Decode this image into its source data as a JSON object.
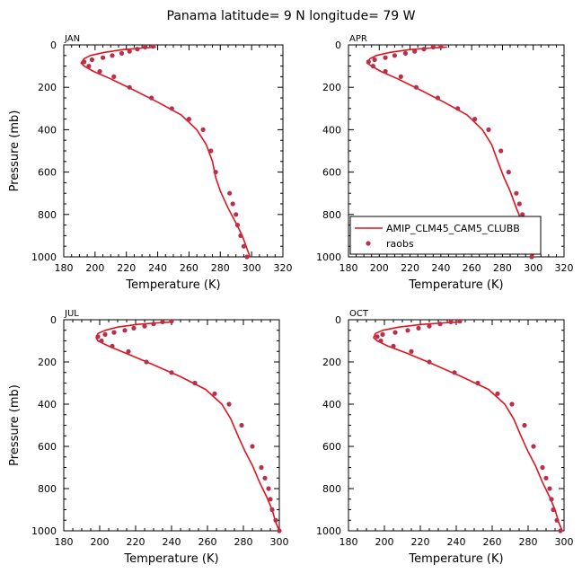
{
  "figure": {
    "title": "Panama  latitude= 9 N longitude= 79 W"
  },
  "colors": {
    "model_line": "#e0141e",
    "raobs_marker": "#b8304a",
    "axis": "#000000"
  },
  "legend": {
    "model_label": "AMIP_CLM45_CAM5_CLUBB",
    "obs_label": "raobs",
    "placement": "bottom-right of APR panel"
  },
  "chart_data": [
    {
      "type": "line",
      "panel_label": "JAN",
      "xlabel": "Temperature (K)",
      "ylabel": "Pressure (mb)",
      "xlim": [
        180,
        320
      ],
      "ylim": [
        1000,
        0
      ],
      "xticks": [
        "180",
        "200",
        "220",
        "240",
        "260",
        "280",
        "300",
        "320"
      ],
      "yticks": [
        "0",
        "200",
        "400",
        "600",
        "800",
        "1000"
      ],
      "show_legend": false,
      "series": [
        {
          "name": "AMIP_CLM45_CAM5_CLUBB",
          "style": "line",
          "x": [
            239,
            230,
            218,
            206,
            197,
            193,
            191,
            193,
            199,
            210,
            224,
            240,
            255,
            265,
            271,
            275,
            277,
            280,
            285,
            290,
            294,
            297,
            299
          ],
          "y": [
            10,
            15,
            22,
            35,
            50,
            65,
            85,
            100,
            125,
            160,
            210,
            270,
            330,
            400,
            470,
            550,
            625,
            690,
            770,
            840,
            900,
            960,
            1000
          ]
        },
        {
          "name": "raobs",
          "style": "points",
          "x": [
            237,
            232,
            227,
            222,
            217,
            211,
            205,
            198,
            193,
            196,
            203,
            212,
            222,
            236,
            249,
            260,
            269,
            274,
            277,
            286,
            288,
            290,
            291,
            293,
            295,
            297
          ],
          "y": [
            7,
            10,
            20,
            30,
            40,
            50,
            60,
            70,
            80,
            100,
            125,
            150,
            200,
            250,
            300,
            350,
            400,
            500,
            600,
            700,
            750,
            800,
            850,
            900,
            950,
            1000
          ]
        }
      ]
    },
    {
      "type": "line",
      "panel_label": "APR",
      "xlabel": "Temperature (K)",
      "ylabel": "",
      "xlim": [
        180,
        320
      ],
      "ylim": [
        1000,
        0
      ],
      "xticks": [
        "180",
        "200",
        "220",
        "240",
        "260",
        "280",
        "300",
        "320"
      ],
      "yticks": [
        "0",
        "200",
        "400",
        "600",
        "800",
        "1000"
      ],
      "show_legend": true,
      "series": [
        {
          "name": "AMIP_CLM45_CAM5_CLUBB",
          "style": "line",
          "x": [
            244,
            233,
            220,
            207,
            198,
            194,
            192,
            195,
            201,
            212,
            226,
            242,
            257,
            267,
            273,
            277,
            281,
            285,
            289,
            293,
            296,
            298,
            300
          ],
          "y": [
            10,
            15,
            22,
            35,
            50,
            65,
            85,
            100,
            125,
            160,
            210,
            270,
            330,
            400,
            470,
            550,
            625,
            690,
            770,
            840,
            900,
            960,
            1000
          ]
        },
        {
          "name": "raobs",
          "style": "points",
          "x": [
            240,
            235,
            229,
            223,
            217,
            210,
            204,
            197,
            193,
            196,
            204,
            214,
            224,
            238,
            251,
            262,
            271,
            279,
            284,
            289,
            291,
            293,
            294,
            296,
            298,
            299
          ],
          "y": [
            7,
            10,
            20,
            30,
            40,
            50,
            60,
            70,
            80,
            100,
            125,
            150,
            200,
            250,
            300,
            350,
            400,
            500,
            600,
            700,
            750,
            800,
            850,
            900,
            950,
            1000
          ]
        }
      ]
    },
    {
      "type": "line",
      "panel_label": "JUL",
      "xlabel": "Temperature (K)",
      "ylabel": "Pressure (mb)",
      "xlim": [
        180,
        300
      ],
      "ylim": [
        1000,
        0
      ],
      "xticks": [
        "180",
        "200",
        "220",
        "240",
        "260",
        "280",
        "300"
      ],
      "yticks": [
        "0",
        "200",
        "400",
        "600",
        "800",
        "1000"
      ],
      "show_legend": false,
      "series": [
        {
          "name": "AMIP_CLM45_CAM5_CLUBB",
          "style": "line",
          "x": [
            241,
            232,
            221,
            210,
            203,
            199,
            198,
            199,
            205,
            215,
            229,
            245,
            259,
            268,
            273,
            277,
            281,
            285,
            289,
            293,
            296,
            298,
            300
          ],
          "y": [
            10,
            15,
            22,
            35,
            50,
            65,
            85,
            100,
            125,
            160,
            210,
            270,
            330,
            400,
            470,
            550,
            625,
            690,
            770,
            840,
            900,
            960,
            1000
          ]
        },
        {
          "name": "raobs",
          "style": "points",
          "x": [
            240,
            235,
            230,
            225,
            219,
            214,
            208,
            203,
            199,
            201,
            207,
            216,
            226,
            240,
            253,
            264,
            272,
            279,
            285,
            290,
            292,
            294,
            295,
            296,
            298,
            300
          ],
          "y": [
            7,
            10,
            20,
            30,
            40,
            50,
            60,
            70,
            80,
            100,
            125,
            150,
            200,
            250,
            300,
            350,
            400,
            500,
            600,
            700,
            750,
            800,
            850,
            900,
            950,
            1000
          ]
        }
      ]
    },
    {
      "type": "line",
      "panel_label": "OCT",
      "xlabel": "Temperature (K)",
      "ylabel": "",
      "xlim": [
        180,
        300
      ],
      "ylim": [
        1000,
        0
      ],
      "xticks": [
        "180",
        "200",
        "220",
        "240",
        "260",
        "280",
        "300"
      ],
      "yticks": [
        "0",
        "200",
        "400",
        "600",
        "800",
        "1000"
      ],
      "show_legend": false,
      "series": [
        {
          "name": "AMIP_CLM45_CAM5_CLUBB",
          "style": "line",
          "x": [
            243,
            233,
            221,
            208,
            199,
            195,
            194,
            196,
            202,
            213,
            227,
            243,
            258,
            267,
            272,
            276,
            280,
            284,
            288,
            292,
            295,
            297,
            299
          ],
          "y": [
            10,
            15,
            22,
            35,
            50,
            65,
            85,
            100,
            125,
            160,
            210,
            270,
            330,
            400,
            470,
            550,
            625,
            690,
            770,
            840,
            900,
            960,
            1000
          ]
        },
        {
          "name": "raobs",
          "style": "points",
          "x": [
            242,
            237,
            231,
            225,
            219,
            213,
            206,
            199,
            196,
            198,
            205,
            215,
            225,
            239,
            252,
            263,
            271,
            278,
            283,
            288,
            290,
            292,
            293,
            294,
            296,
            298
          ],
          "y": [
            7,
            10,
            20,
            30,
            40,
            50,
            60,
            70,
            80,
            100,
            125,
            150,
            200,
            250,
            300,
            350,
            400,
            500,
            600,
            700,
            750,
            800,
            850,
            900,
            950,
            1000
          ]
        }
      ]
    }
  ]
}
